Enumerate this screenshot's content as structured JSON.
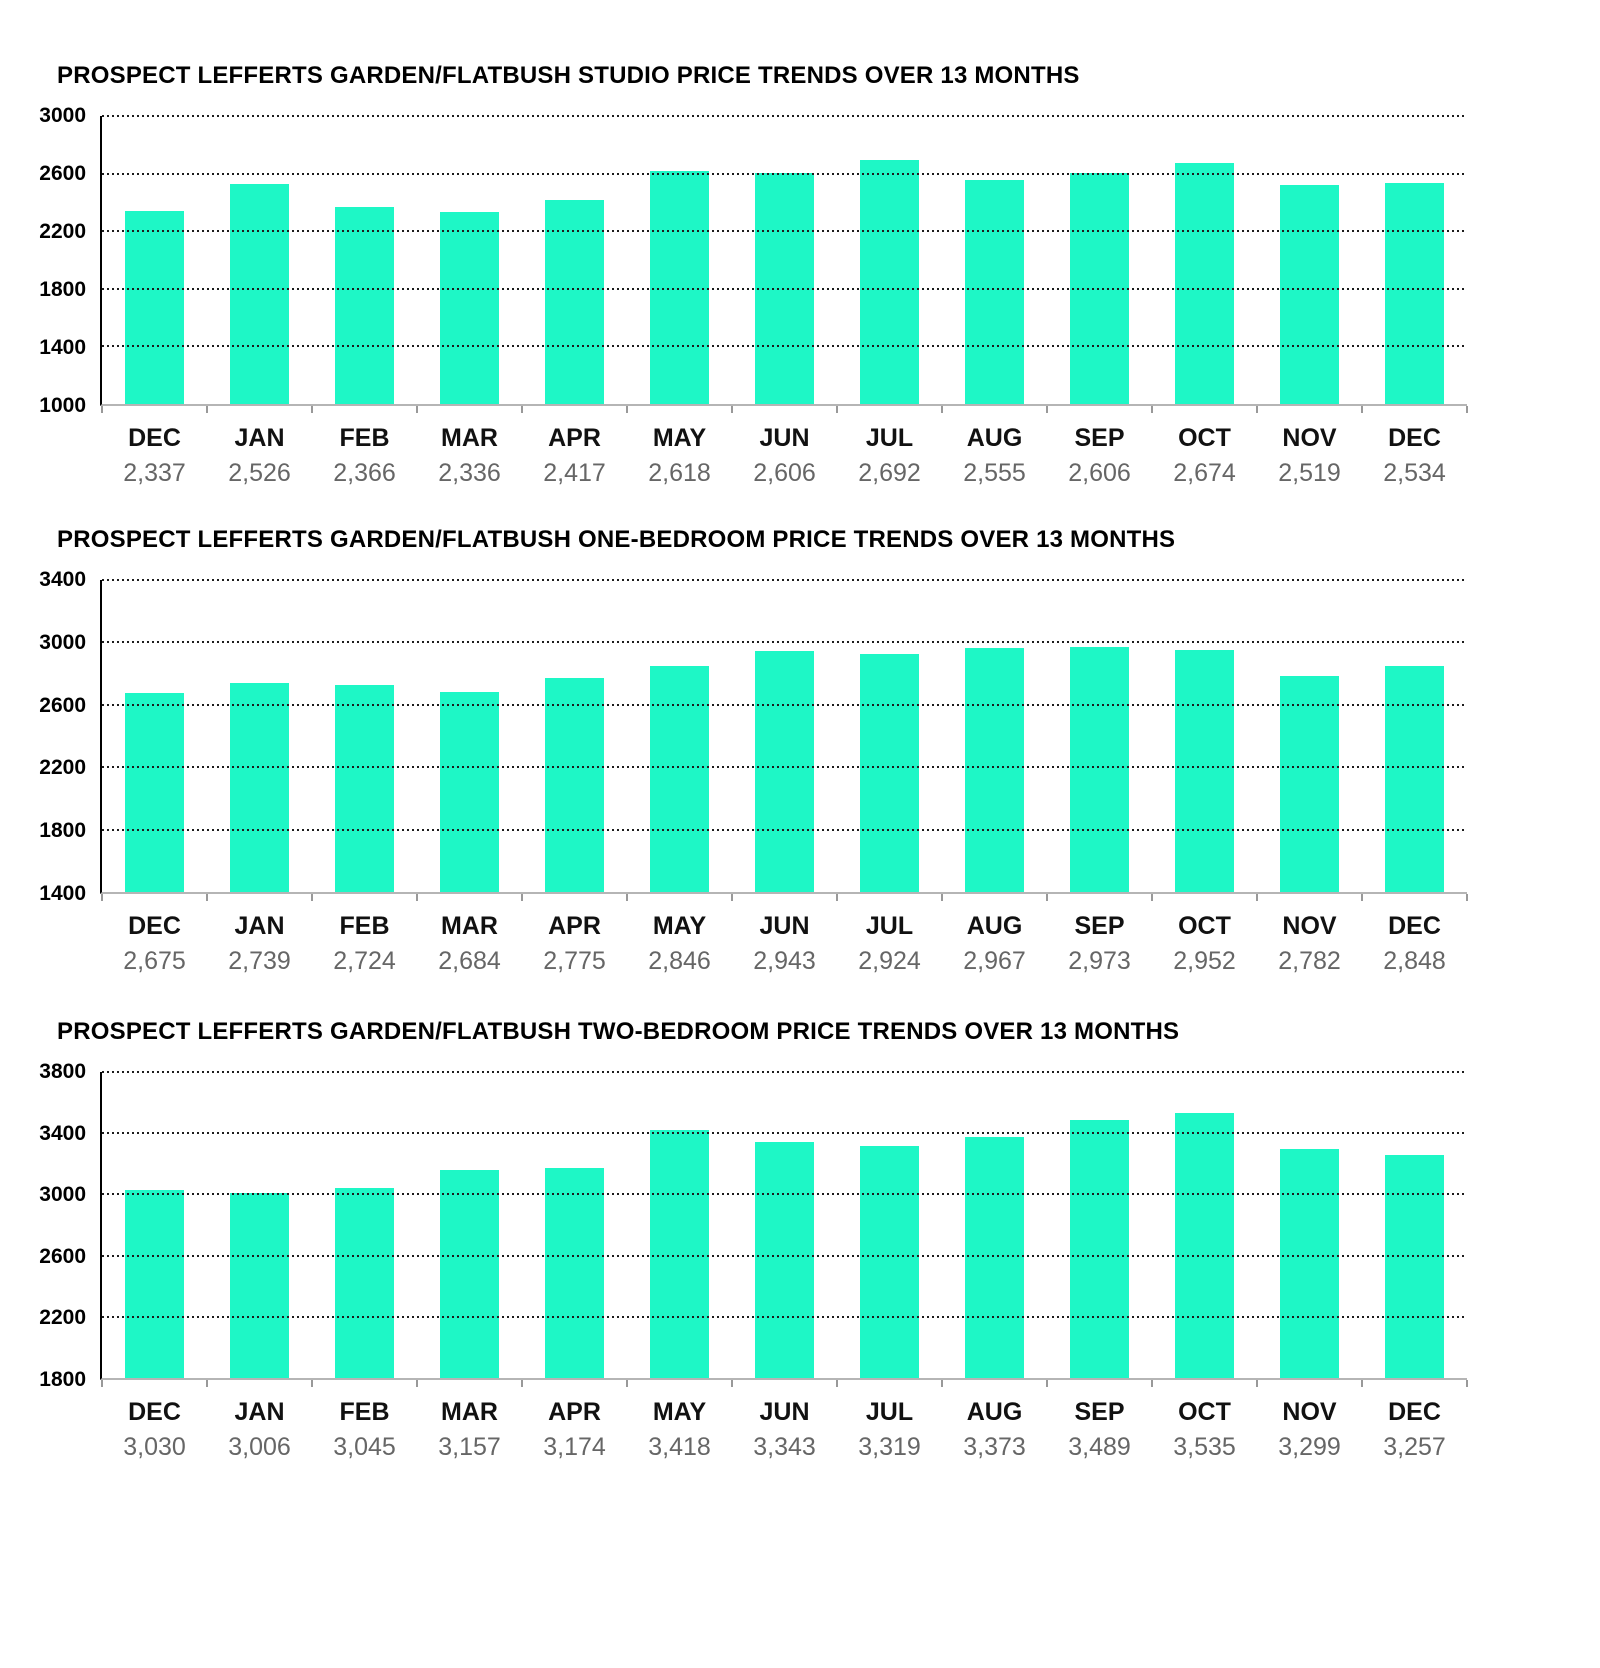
{
  "colors": {
    "bar": "#1ef7c6",
    "grid": "#1c1c1c",
    "value_label": "#666666",
    "month_label": "#111111"
  },
  "chart_data": [
    {
      "type": "bar",
      "title": "PROSPECT LEFFERTS GARDEN/FLATBUSH STUDIO PRICE TRENDS OVER 13 MONTHS",
      "categories": [
        "DEC",
        "JAN",
        "FEB",
        "MAR",
        "APR",
        "MAY",
        "JUN",
        "JUL",
        "AUG",
        "SEP",
        "OCT",
        "NOV",
        "DEC"
      ],
      "values": [
        2337,
        2526,
        2366,
        2336,
        2417,
        2618,
        2606,
        2692,
        2555,
        2606,
        2674,
        2519,
        2534
      ],
      "value_labels": [
        "2,337",
        "2,526",
        "2,366",
        "2,336",
        "2,417",
        "2,618",
        "2,606",
        "2,692",
        "2,555",
        "2,606",
        "2,674",
        "2,519",
        "2,534"
      ],
      "ylim": [
        1000,
        3000
      ],
      "yticks": [
        3000,
        2600,
        2200,
        1800,
        1400,
        1000
      ],
      "grid": "dotted-horizontal",
      "legend": "none",
      "xlabel": "",
      "ylabel": ""
    },
    {
      "type": "bar",
      "title": "PROSPECT LEFFERTS GARDEN/FLATBUSH ONE-BEDROOM PRICE TRENDS OVER 13 MONTHS",
      "categories": [
        "DEC",
        "JAN",
        "FEB",
        "MAR",
        "APR",
        "MAY",
        "JUN",
        "JUL",
        "AUG",
        "SEP",
        "OCT",
        "NOV",
        "DEC"
      ],
      "values": [
        2675,
        2739,
        2724,
        2684,
        2775,
        2846,
        2943,
        2924,
        2967,
        2973,
        2952,
        2782,
        2848
      ],
      "value_labels": [
        "2,675",
        "2,739",
        "2,724",
        "2,684",
        "2,775",
        "2,846",
        "2,943",
        "2,924",
        "2,967",
        "2,973",
        "2,952",
        "2,782",
        "2,848"
      ],
      "ylim": [
        1400,
        3400
      ],
      "yticks": [
        3400,
        3000,
        2600,
        2200,
        1800,
        1400
      ],
      "grid": "dotted-horizontal",
      "legend": "none",
      "xlabel": "",
      "ylabel": ""
    },
    {
      "type": "bar",
      "title": "PROSPECT LEFFERTS GARDEN/FLATBUSH TWO-BEDROOM PRICE TRENDS OVER 13 MONTHS",
      "categories": [
        "DEC",
        "JAN",
        "FEB",
        "MAR",
        "APR",
        "MAY",
        "JUN",
        "JUL",
        "AUG",
        "SEP",
        "OCT",
        "NOV",
        "DEC"
      ],
      "values": [
        3030,
        3006,
        3045,
        3157,
        3174,
        3418,
        3343,
        3319,
        3373,
        3489,
        3535,
        3299,
        3257
      ],
      "value_labels": [
        "3,030",
        "3,006",
        "3,045",
        "3,157",
        "3,174",
        "3,418",
        "3,343",
        "3,319",
        "3,373",
        "3,489",
        "3,535",
        "3,299",
        "3,257"
      ],
      "ylim": [
        1800,
        3800
      ],
      "yticks": [
        3800,
        3400,
        3000,
        2600,
        2200,
        1800
      ],
      "grid": "dotted-horizontal",
      "legend": "none",
      "xlabel": "",
      "ylabel": ""
    }
  ]
}
